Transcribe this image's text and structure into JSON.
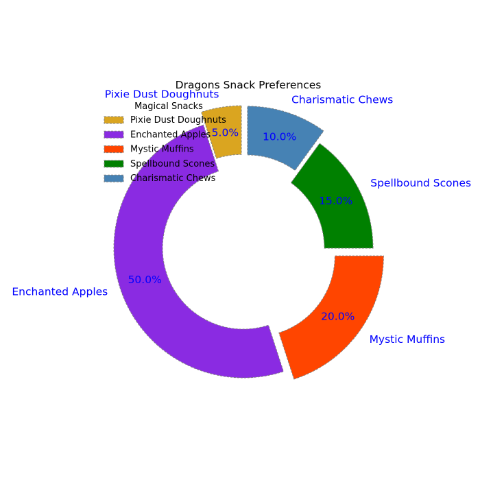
{
  "chart_data": {
    "type": "pie",
    "title": "Dragons Snack Preferences",
    "categories": [
      "Pixie Dust Doughnuts",
      "Enchanted Apples",
      "Mystic Muffins",
      "Spellbound Scones",
      "Charismatic Chews"
    ],
    "values": [
      5.0,
      50.0,
      20.0,
      15.0,
      10.0
    ],
    "value_labels": [
      "5.0%",
      "50.0%",
      "20.0%",
      "15.0%",
      "10.0%"
    ],
    "colors": [
      "#DAA520",
      "#8A2BE2",
      "#FF4500",
      "#008000",
      "#4682B4"
    ],
    "exploded": [
      true,
      false,
      true,
      false,
      true
    ],
    "donut": true,
    "label_color": "#0000FF",
    "edge_color": "#808080",
    "edge_style": "dashed",
    "legend": {
      "title": "Magical Snacks",
      "placement": "upper-left"
    }
  }
}
